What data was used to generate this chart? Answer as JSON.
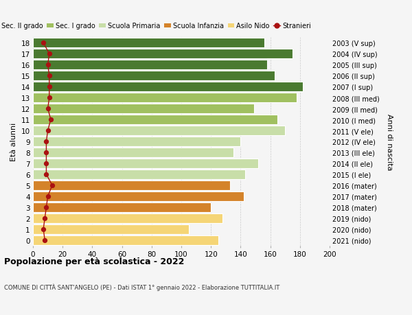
{
  "ages": [
    0,
    1,
    2,
    3,
    4,
    5,
    6,
    7,
    8,
    9,
    10,
    11,
    12,
    13,
    14,
    15,
    16,
    17,
    18
  ],
  "right_labels": [
    "2021 (nido)",
    "2020 (nido)",
    "2019 (nido)",
    "2018 (mater)",
    "2017 (mater)",
    "2016 (mater)",
    "2015 (I ele)",
    "2014 (II ele)",
    "2013 (III ele)",
    "2012 (IV ele)",
    "2011 (V ele)",
    "2010 (I med)",
    "2009 (II med)",
    "2008 (III med)",
    "2007 (I sup)",
    "2006 (II sup)",
    "2005 (III sup)",
    "2004 (IV sup)",
    "2003 (V sup)"
  ],
  "bar_values": [
    125,
    105,
    128,
    120,
    142,
    133,
    143,
    152,
    135,
    140,
    170,
    165,
    149,
    178,
    182,
    163,
    158,
    175,
    156
  ],
  "bar_colors": [
    "#f5d576",
    "#f5d576",
    "#f5d576",
    "#d4832a",
    "#d4832a",
    "#d4832a",
    "#c8dea8",
    "#c8dea8",
    "#c8dea8",
    "#c8dea8",
    "#c8dea8",
    "#a0c060",
    "#a0c060",
    "#a0c060",
    "#4a7a30",
    "#4a7a30",
    "#4a7a30",
    "#4a7a30",
    "#4a7a30"
  ],
  "stranieri_values": [
    8,
    7,
    8,
    9,
    10,
    13,
    9,
    9,
    9,
    9,
    10,
    12,
    10,
    11,
    11,
    11,
    10,
    11,
    7
  ],
  "legend_labels": [
    "Sec. II grado",
    "Sec. I grado",
    "Scuola Primaria",
    "Scuola Infanzia",
    "Asilo Nido",
    "Stranieri"
  ],
  "legend_colors": [
    "#4a7a30",
    "#a0c060",
    "#c8dea8",
    "#d4832a",
    "#f5d576",
    "#aa1111"
  ],
  "ylabel_left": "Età alunni",
  "ylabel_right": "Anni di nascita",
  "xlim": [
    0,
    200
  ],
  "xticks": [
    0,
    20,
    40,
    60,
    80,
    100,
    120,
    140,
    160,
    180,
    200
  ],
  "title": "Popolazione per età scolastica - 2022",
  "subtitle": "COMUNE DI CITTÀ SANT'ANGELO (PE) - Dati ISTAT 1° gennaio 2022 - Elaborazione TUTTITALIA.IT",
  "bg_color": "#f5f5f5",
  "bar_edge_color": "white"
}
